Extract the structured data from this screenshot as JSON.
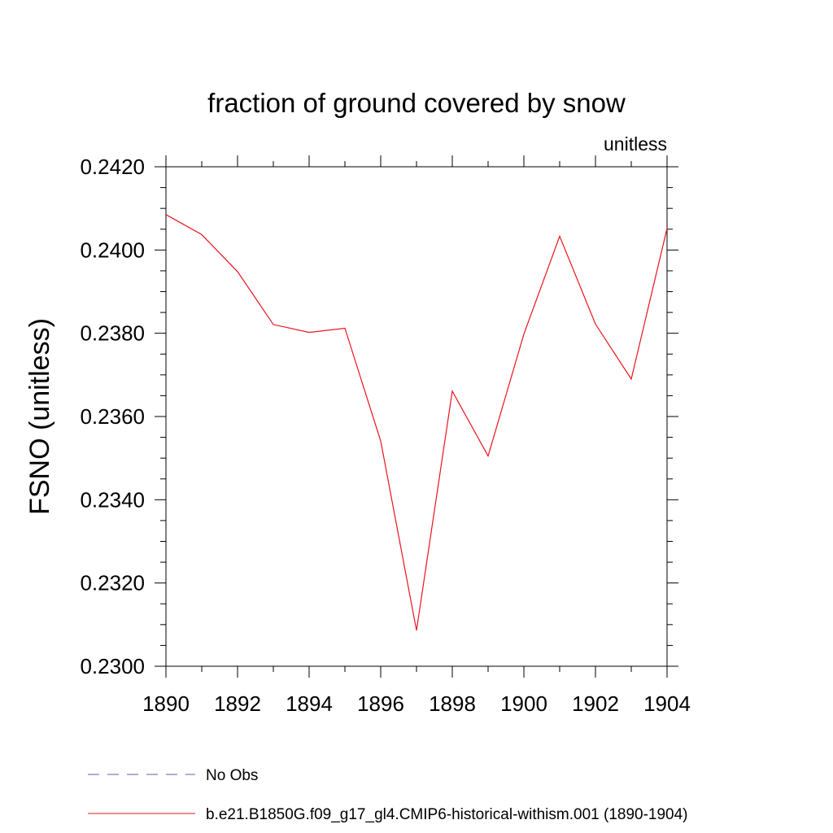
{
  "chart_data": {
    "type": "line",
    "title": "fraction of ground covered by snow",
    "subtitle_right": "unitless",
    "ylabel": "FSNO  (unitless)",
    "xlabel": "",
    "xlim": [
      1890,
      1904
    ],
    "ylim": [
      0.23,
      0.242
    ],
    "x_ticks": [
      1890,
      1892,
      1894,
      1896,
      1898,
      1900,
      1902,
      1904
    ],
    "x_tick_labels": [
      "1890",
      "1892",
      "1894",
      "1896",
      "1898",
      "1900",
      "1902",
      "1904"
    ],
    "y_ticks": [
      0.23,
      0.232,
      0.234,
      0.236,
      0.238,
      0.24,
      0.242
    ],
    "y_tick_labels": [
      "0.2300",
      "0.2320",
      "0.2340",
      "0.2360",
      "0.2380",
      "0.2400",
      "0.2420"
    ],
    "grid": false,
    "legend_position": "bottom",
    "series": [
      {
        "name": "b.e21.B1850G.f09_g17_gl4.CMIP6-historical-withism.001 (1890-1904)",
        "color": "#e8141c",
        "style": "solid",
        "x": [
          1890,
          1891,
          1892,
          1893,
          1894,
          1895,
          1896,
          1897,
          1898,
          1899,
          1900,
          1901,
          1902,
          1903,
          1904
        ],
        "y": [
          0.24085,
          0.24037,
          0.23948,
          0.23821,
          0.23802,
          0.23812,
          0.23541,
          0.23086,
          0.23661,
          0.23505,
          0.23798,
          0.24033,
          0.23822,
          0.2369,
          0.24052
        ]
      }
    ],
    "legend": [
      {
        "label": "No Obs",
        "color": "#5c5ca8",
        "style": "dashed"
      },
      {
        "label": "b.e21.B1850G.f09_g17_gl4.CMIP6-historical-withism.001 (1890-1904)",
        "color": "#e8141c",
        "style": "solid"
      }
    ]
  }
}
